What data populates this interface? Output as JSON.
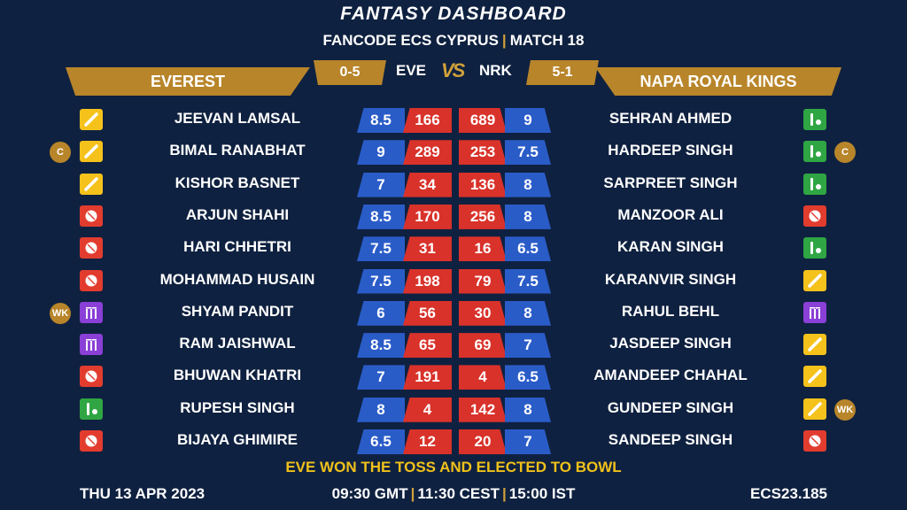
{
  "header": {
    "title": "FANTASY DASHBOARD",
    "subtitle_left": "FANCODE ECS CYPRUS",
    "subtitle_sep": "|",
    "subtitle_right": "MATCH 18"
  },
  "teams": {
    "left": {
      "name": "EVEREST",
      "abbr": "EVE",
      "score": "0-5"
    },
    "right": {
      "name": "NAPA ROYAL KINGS",
      "abbr": "NRK",
      "score": "5-1"
    },
    "vs_icon": "VS"
  },
  "colors": {
    "background": "#0f2140",
    "gold": "#b8852a",
    "blue_cell": "#2a5cc8",
    "red_cell": "#d8322a",
    "batter": "#f5c21b",
    "bowler": "#e23c2f",
    "wicketkeeper": "#8a3fd6",
    "allrounder": "#2fa643",
    "toss_text": "#f0c11a"
  },
  "rows": [
    {
      "left": {
        "name": "JEEVAN LAMSAL",
        "role": "batter-icon",
        "badge": "",
        "credits": "8.5",
        "points": "166"
      },
      "right": {
        "name": "SEHRAN AHMED",
        "role": "allrounder-icon",
        "badge": "",
        "credits": "9",
        "points": "689"
      }
    },
    {
      "left": {
        "name": "BIMAL RANABHAT",
        "role": "batter-icon",
        "badge": "C",
        "credits": "9",
        "points": "289"
      },
      "right": {
        "name": "HARDEEP SINGH",
        "role": "allrounder-icon",
        "badge": "C",
        "credits": "7.5",
        "points": "253"
      }
    },
    {
      "left": {
        "name": "KISHOR BASNET",
        "role": "batter-icon",
        "badge": "",
        "credits": "7",
        "points": "34"
      },
      "right": {
        "name": "SARPREET SINGH",
        "role": "allrounder-icon",
        "badge": "",
        "credits": "8",
        "points": "136"
      }
    },
    {
      "left": {
        "name": "ARJUN SHAHI",
        "role": "bowler-icon",
        "badge": "",
        "credits": "8.5",
        "points": "170"
      },
      "right": {
        "name": "MANZOOR ALI",
        "role": "bowler-icon",
        "badge": "",
        "credits": "8",
        "points": "256"
      }
    },
    {
      "left": {
        "name": "HARI CHHETRI",
        "role": "bowler-icon",
        "badge": "",
        "credits": "7.5",
        "points": "31"
      },
      "right": {
        "name": "KARAN SINGH",
        "role": "allrounder-icon",
        "badge": "",
        "credits": "6.5",
        "points": "16"
      }
    },
    {
      "left": {
        "name": "MOHAMMAD HUSAIN",
        "role": "bowler-icon",
        "badge": "",
        "credits": "7.5",
        "points": "198"
      },
      "right": {
        "name": "KARANVIR SINGH",
        "role": "batter-icon",
        "badge": "",
        "credits": "7.5",
        "points": "79"
      }
    },
    {
      "left": {
        "name": "SHYAM PANDIT",
        "role": "wicketkeeper-icon",
        "badge": "WK",
        "credits": "6",
        "points": "56"
      },
      "right": {
        "name": "RAHUL BEHL",
        "role": "wicketkeeper-icon",
        "badge": "",
        "credits": "8",
        "points": "30"
      }
    },
    {
      "left": {
        "name": "RAM JAISHWAL",
        "role": "wicketkeeper-icon",
        "badge": "",
        "credits": "8.5",
        "points": "65"
      },
      "right": {
        "name": "JASDEEP SINGH",
        "role": "batter-icon",
        "badge": "",
        "credits": "7",
        "points": "69"
      }
    },
    {
      "left": {
        "name": "BHUWAN KHATRI",
        "role": "bowler-icon",
        "badge": "",
        "credits": "7",
        "points": "191"
      },
      "right": {
        "name": "AMANDEEP CHAHAL",
        "role": "batter-icon",
        "badge": "",
        "credits": "6.5",
        "points": "4"
      }
    },
    {
      "left": {
        "name": "RUPESH SINGH",
        "role": "allrounder-icon",
        "badge": "",
        "credits": "8",
        "points": "4"
      },
      "right": {
        "name": "GUNDEEP SINGH",
        "role": "batter-icon",
        "badge": "WK",
        "credits": "8",
        "points": "142"
      }
    },
    {
      "left": {
        "name": "BIJAYA GHIMIRE",
        "role": "bowler-icon",
        "badge": "",
        "credits": "6.5",
        "points": "12"
      },
      "right": {
        "name": "SANDEEP SINGH",
        "role": "bowler-icon",
        "badge": "",
        "credits": "7",
        "points": "20"
      }
    }
  ],
  "toss": "EVE WON THE TOSS AND ELECTED TO BOWL",
  "footer": {
    "date": "THU 13 APR 2023",
    "time_gmt": "09:30 GMT",
    "time_cest": "11:30 CEST",
    "time_ist": "15:00 IST",
    "sep": "|",
    "code": "ECS23.185"
  }
}
